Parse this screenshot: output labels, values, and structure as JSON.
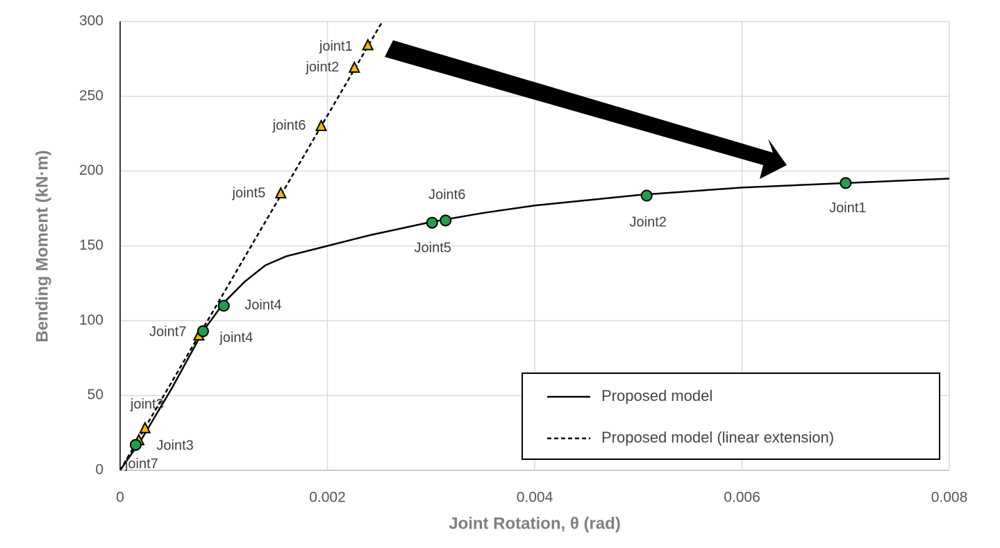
{
  "chart_data": {
    "type": "line",
    "x_label": "Joint Rotation, θ (rad)",
    "y_label": "Bending Moment (kN·m)",
    "xlim": [
      0,
      0.008
    ],
    "ylim": [
      0,
      300
    ],
    "xticks": [
      0,
      0.002,
      0.004,
      0.006,
      0.008
    ],
    "yticks": [
      0,
      50,
      100,
      150,
      200,
      250,
      300
    ],
    "grid": true,
    "legend_position": "lower right",
    "series": [
      {
        "name": "Proposed model",
        "color": "#000000",
        "style": "solid",
        "x": [
          0,
          0.0002,
          0.0005,
          0.0008,
          0.001,
          0.0012,
          0.0014,
          0.0016,
          0.002,
          0.0024,
          0.003,
          0.0035,
          0.004,
          0.005,
          0.006,
          0.007,
          0.008
        ],
        "values": [
          0,
          20,
          55,
          93,
          112,
          126,
          137,
          143,
          150,
          157,
          166,
          172,
          177,
          184,
          189,
          192,
          195
        ]
      },
      {
        "name": "Proposed model (linear extension)",
        "color": "#000000",
        "style": "dashed",
        "x": [
          0,
          0.00253
        ],
        "values": [
          0,
          300
        ]
      }
    ],
    "annotated_points": [
      {
        "marker": "triangle",
        "color": "#f5b800",
        "labels": [
          "joint1",
          "joint2",
          "joint6",
          "joint5",
          "joint4",
          "joint3",
          "joint7"
        ],
        "x": [
          0.00239,
          0.00226,
          0.00194,
          0.00155,
          0.00076,
          0.00024,
          0.00018
        ],
        "values": [
          284,
          269,
          230,
          185,
          90,
          28,
          20
        ]
      },
      {
        "marker": "circle",
        "color": "#1fa04a",
        "labels": [
          "Joint1",
          "Joint2",
          "Joint6",
          "Joint5",
          "Joint4",
          "Joint7",
          "Joint3"
        ],
        "x": [
          0.007,
          0.00508,
          0.00314,
          0.00301,
          0.001,
          0.0008,
          0.00015
        ],
        "values": [
          192,
          183.6,
          167,
          165.5,
          110,
          93,
          17
        ]
      }
    ]
  }
}
